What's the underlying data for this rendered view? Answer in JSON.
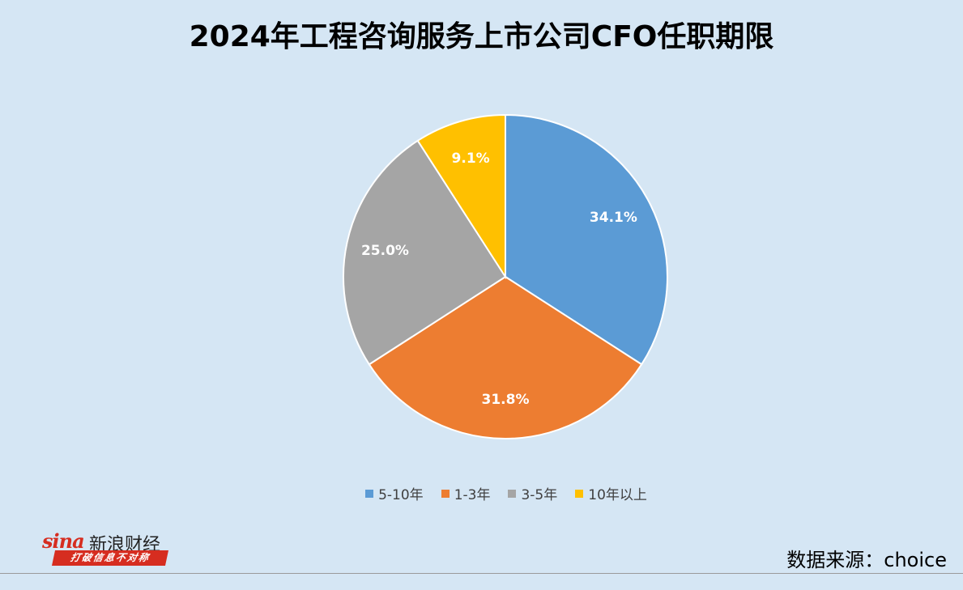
{
  "title": "2024年工程咨询服务上市公司CFO任职期限",
  "chart_data": {
    "type": "pie",
    "title": "2024年工程咨询服务上市公司CFO任职期限",
    "categories": [
      "5-10年",
      "1-3年",
      "3-5年",
      "10年以上"
    ],
    "values": [
      34.1,
      31.8,
      25.0,
      9.1
    ],
    "labels": [
      "34.1%",
      "31.8%",
      "25.0%",
      "9.1%"
    ],
    "colors": [
      "#5b9bd5",
      "#ed7d31",
      "#a5a5a5",
      "#ffc000"
    ],
    "legend_position": "bottom",
    "start_angle": "12 o'clock",
    "direction": "clockwise"
  },
  "legend": [
    {
      "label": "5-10年",
      "color": "#5b9bd5"
    },
    {
      "label": "1-3年",
      "color": "#ed7d31"
    },
    {
      "label": "3-5年",
      "color": "#a5a5a5"
    },
    {
      "label": "10年以上",
      "color": "#ffc000"
    }
  ],
  "logo": {
    "word": "sina",
    "cn": "新浪财经",
    "slogan": "打破信息不对称"
  },
  "source": "数据来源：choice"
}
